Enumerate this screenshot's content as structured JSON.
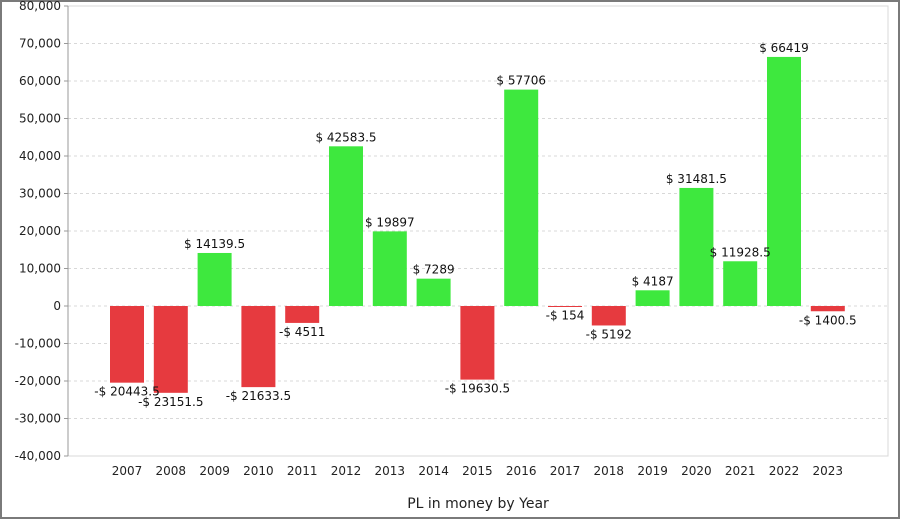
{
  "chart_data": {
    "type": "bar",
    "title": "",
    "xlabel": "PL in money by Year",
    "ylabel": "",
    "ylim": [
      -40000,
      80000
    ],
    "yticks": [
      80000,
      70000,
      60000,
      50000,
      40000,
      30000,
      20000,
      10000,
      0,
      -10000,
      -20000,
      -30000,
      -40000
    ],
    "ytick_labels": [
      "80,000",
      "70,000",
      "60,000",
      "50,000",
      "40,000",
      "30,000",
      "20,000",
      "10,000",
      "0",
      "-10,000",
      "-20,000",
      "-30,000",
      "-40,000"
    ],
    "grid": true,
    "legend": "none",
    "categories": [
      "2007",
      "2008",
      "2009",
      "2010",
      "2011",
      "2012",
      "2013",
      "2014",
      "2015",
      "2016",
      "2017",
      "2018",
      "2019",
      "2020",
      "2021",
      "2022",
      "2023"
    ],
    "values": [
      -20443.5,
      -23151.5,
      14139.5,
      -21633.5,
      -4511,
      42583.5,
      19897,
      7289,
      -19630.5,
      57706,
      -154,
      -5192,
      4187,
      31481.5,
      11928.5,
      66419,
      -1400.5
    ],
    "data_labels": [
      "-$ 20443.5",
      "-$ 23151.5",
      "$ 14139.5",
      "-$ 21633.5",
      "-$ 4511",
      "$ 42583.5",
      "$ 19897",
      "$ 7289",
      "-$ 19630.5",
      "$ 57706",
      "-$ 154",
      "-$ 5192",
      "$ 4187",
      "$ 31481.5",
      "$ 11928.5",
      "$ 66419",
      "-$ 1400.5"
    ],
    "colors": {
      "positive": "#3ee83e",
      "negative": "#e63a3f",
      "grid": "#d8d8d8",
      "axis": "#999999"
    }
  }
}
